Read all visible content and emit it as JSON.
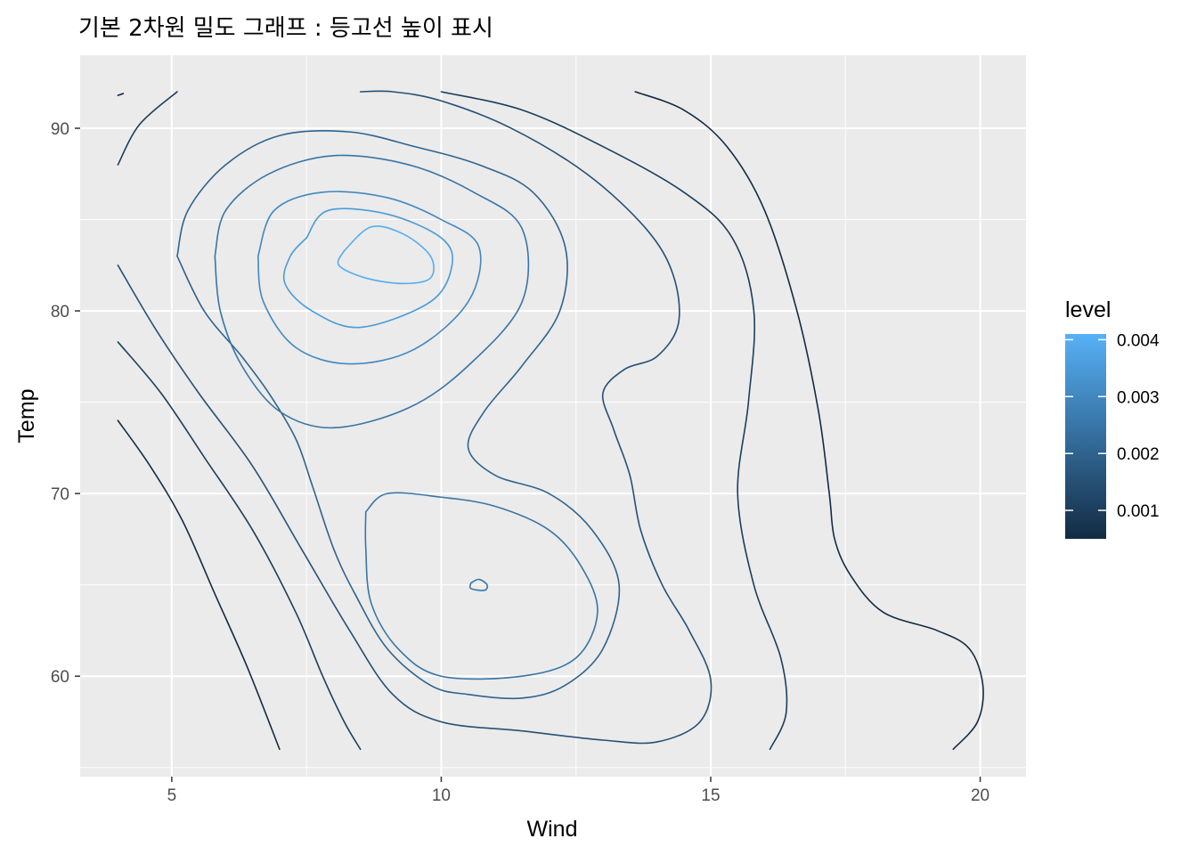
{
  "chart_data": {
    "type": "contour",
    "title": "기본 2차원 밀도 그래프 : 등고선 높이 표시",
    "xlabel": "Wind",
    "ylabel": "Temp",
    "xlim": [
      3.3,
      20.85
    ],
    "ylim": [
      54.5,
      94
    ],
    "x_ticks": [
      5,
      10,
      15,
      20
    ],
    "y_ticks": [
      60,
      70,
      80,
      90
    ],
    "x_minor_ticks": [
      7.5,
      12.5,
      17.5
    ],
    "y_minor_ticks": [
      55,
      65,
      75,
      85
    ],
    "grid": true,
    "background": "#EBEBEB",
    "legend": {
      "title": "level",
      "position": "right",
      "type": "colorbar",
      "range": [
        0.0005,
        0.0041
      ],
      "breaks": [
        0.001,
        0.002,
        0.003,
        0.004
      ],
      "labels": [
        "0.001",
        "0.002",
        "0.003",
        "0.004"
      ],
      "color_low": "#132B43",
      "color_high": "#56B1F7"
    },
    "contours": [
      {
        "level": 0.0005,
        "points": [
          [
            4.0,
            91.8
          ],
          [
            4.1,
            91.9
          ]
        ]
      },
      {
        "level": 0.0005,
        "points": [
          [
            4.0,
            74.0
          ],
          [
            4.6,
            71.5
          ],
          [
            5.2,
            68.5
          ],
          [
            5.8,
            64.5
          ],
          [
            6.4,
            60.5
          ],
          [
            7.0,
            56.0
          ]
        ]
      },
      {
        "level": 0.0005,
        "points": [
          [
            13.6,
            92.0
          ],
          [
            14.5,
            91.0
          ],
          [
            15.3,
            89.0
          ],
          [
            16.0,
            85.5
          ],
          [
            16.6,
            80.0
          ],
          [
            17.0,
            74.5
          ],
          [
            17.2,
            70.0
          ],
          [
            17.3,
            67.5
          ],
          [
            17.6,
            65.5
          ],
          [
            18.2,
            63.5
          ],
          [
            19.2,
            62.5
          ],
          [
            19.8,
            61.5
          ],
          [
            20.05,
            59.5
          ],
          [
            19.95,
            57.5
          ],
          [
            19.5,
            56.0
          ]
        ]
      },
      {
        "level": 0.001,
        "points": [
          [
            4.0,
            88.0
          ],
          [
            4.4,
            90.2
          ],
          [
            5.1,
            92.0
          ]
        ]
      },
      {
        "level": 0.001,
        "points": [
          [
            4.0,
            78.3
          ],
          [
            4.8,
            75.5
          ],
          [
            5.6,
            72.0
          ],
          [
            6.5,
            68.0
          ],
          [
            7.3,
            63.5
          ],
          [
            7.8,
            60.0
          ],
          [
            8.2,
            57.5
          ],
          [
            8.5,
            56.0
          ]
        ]
      },
      {
        "level": 0.001,
        "points": [
          [
            10.0,
            92.0
          ],
          [
            11.5,
            91.0
          ],
          [
            13.0,
            89.0
          ],
          [
            14.5,
            86.5
          ],
          [
            15.4,
            84.0
          ],
          [
            15.8,
            80.0
          ],
          [
            15.7,
            75.0
          ],
          [
            15.5,
            70.0
          ],
          [
            15.8,
            65.0
          ],
          [
            16.3,
            61.0
          ],
          [
            16.4,
            58.0
          ],
          [
            16.1,
            56.0
          ]
        ]
      },
      {
        "level": 0.0015,
        "points": [
          [
            4.0,
            82.5
          ],
          [
            4.7,
            79.0
          ],
          [
            5.5,
            75.5
          ],
          [
            6.5,
            71.5
          ],
          [
            7.4,
            67.0
          ],
          [
            8.3,
            62.5
          ],
          [
            9.1,
            59.0
          ],
          [
            10.0,
            57.5
          ],
          [
            11.5,
            57.0
          ],
          [
            13.0,
            56.5
          ],
          [
            14.0,
            56.4
          ],
          [
            14.8,
            57.5
          ],
          [
            15.0,
            59.8
          ],
          [
            14.6,
            62.5
          ],
          [
            14.1,
            65.0
          ],
          [
            13.7,
            68.0
          ],
          [
            13.5,
            71.0
          ],
          [
            13.2,
            73.5
          ],
          [
            13.0,
            75.5
          ],
          [
            13.4,
            76.8
          ],
          [
            14.0,
            77.5
          ],
          [
            14.4,
            79.3
          ],
          [
            14.3,
            82.0
          ],
          [
            13.8,
            84.5
          ],
          [
            12.7,
            87.5
          ],
          [
            11.3,
            90.0
          ],
          [
            10.0,
            91.5
          ],
          [
            9.1,
            92.0
          ],
          [
            8.5,
            92.0
          ]
        ]
      },
      {
        "level": 0.002,
        "points": [
          [
            5.1,
            83.0
          ],
          [
            5.3,
            85.5
          ],
          [
            6.0,
            88.0
          ],
          [
            7.0,
            89.6
          ],
          [
            8.3,
            89.8
          ],
          [
            9.5,
            89.0
          ],
          [
            10.7,
            88.0
          ],
          [
            11.7,
            86.5
          ],
          [
            12.3,
            83.5
          ],
          [
            12.2,
            80.0
          ],
          [
            11.5,
            77.0
          ],
          [
            10.8,
            74.5
          ],
          [
            10.5,
            72.5
          ],
          [
            11.0,
            71.0
          ],
          [
            12.0,
            70.0
          ],
          [
            12.8,
            68.0
          ],
          [
            13.3,
            65.0
          ],
          [
            13.0,
            61.5
          ],
          [
            12.3,
            59.5
          ],
          [
            11.5,
            58.8
          ],
          [
            10.5,
            59.0
          ],
          [
            9.8,
            59.5
          ],
          [
            9.0,
            61.5
          ],
          [
            8.4,
            64.5
          ],
          [
            8.0,
            67.0
          ],
          [
            7.6,
            70.5
          ],
          [
            7.3,
            73.0
          ],
          [
            6.8,
            75.5
          ],
          [
            6.3,
            77.5
          ],
          [
            5.6,
            80.0
          ],
          [
            5.1,
            83.0
          ]
        ]
      },
      {
        "level": 0.0025,
        "points": [
          [
            5.8,
            83.0
          ],
          [
            6.0,
            85.5
          ],
          [
            6.8,
            87.5
          ],
          [
            8.0,
            88.5
          ],
          [
            9.4,
            88.0
          ],
          [
            10.6,
            86.5
          ],
          [
            11.5,
            84.5
          ],
          [
            11.5,
            80.5
          ],
          [
            10.5,
            77.0
          ],
          [
            9.4,
            74.7
          ],
          [
            8.0,
            73.6
          ],
          [
            7.0,
            74.5
          ],
          [
            6.3,
            77.0
          ],
          [
            5.9,
            80.0
          ],
          [
            5.8,
            83.0
          ]
        ]
      },
      {
        "level": 0.0025,
        "points": [
          [
            8.6,
            69.0
          ],
          [
            9.0,
            70.0
          ],
          [
            10.0,
            69.8
          ],
          [
            11.0,
            69.3
          ],
          [
            12.0,
            68.0
          ],
          [
            12.6,
            66.0
          ],
          [
            12.9,
            63.5
          ],
          [
            12.5,
            61.0
          ],
          [
            11.5,
            60.0
          ],
          [
            10.0,
            60.0
          ],
          [
            9.2,
            61.5
          ],
          [
            8.7,
            64.0
          ],
          [
            8.6,
            67.0
          ],
          [
            8.6,
            69.0
          ]
        ]
      },
      {
        "level": 0.003,
        "points": [
          [
            6.6,
            83.0
          ],
          [
            6.9,
            85.5
          ],
          [
            7.8,
            86.5
          ],
          [
            9.0,
            86.2
          ],
          [
            10.0,
            85.0
          ],
          [
            10.7,
            83.5
          ],
          [
            10.5,
            80.5
          ],
          [
            9.5,
            77.9
          ],
          [
            8.3,
            77.1
          ],
          [
            7.3,
            78.0
          ],
          [
            6.7,
            80.5
          ],
          [
            6.6,
            83.0
          ]
        ]
      },
      {
        "level": 0.0035,
        "points": [
          [
            7.5,
            84.0
          ],
          [
            7.9,
            85.5
          ],
          [
            9.0,
            85.3
          ],
          [
            10.0,
            84.0
          ],
          [
            10.2,
            82.5
          ],
          [
            9.8,
            80.5
          ],
          [
            8.5,
            79.1
          ],
          [
            7.6,
            80.0
          ],
          [
            7.1,
            81.5
          ],
          [
            7.2,
            83.0
          ],
          [
            7.5,
            84.0
          ]
        ]
      },
      {
        "level": 0.004,
        "points": [
          [
            8.2,
            83.3
          ],
          [
            8.7,
            84.6
          ],
          [
            9.3,
            84.2
          ],
          [
            9.8,
            83.0
          ],
          [
            9.8,
            81.8
          ],
          [
            9.3,
            81.5
          ],
          [
            8.6,
            81.8
          ],
          [
            8.1,
            82.5
          ],
          [
            8.2,
            83.3
          ]
        ]
      },
      {
        "level": 0.0025,
        "points": [
          [
            10.55,
            65.1
          ],
          [
            10.7,
            65.3
          ],
          [
            10.85,
            65.0
          ],
          [
            10.8,
            64.7
          ],
          [
            10.55,
            64.8
          ],
          [
            10.55,
            65.1
          ]
        ]
      }
    ]
  }
}
